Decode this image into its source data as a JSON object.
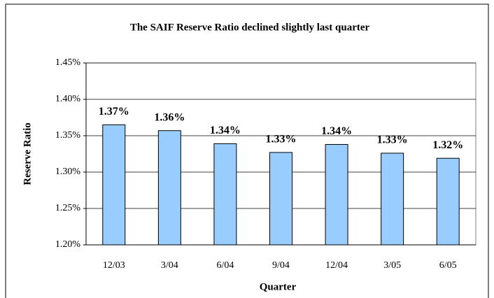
{
  "chart_data": {
    "type": "bar",
    "title": "The SAIF Reserve Ratio declined slightly last quarter",
    "x_label": "Quarter",
    "y_label": "Reserve Ratio",
    "categories": [
      "12/03",
      "3/04",
      "6/04",
      "9/04",
      "12/04",
      "3/05",
      "6/05"
    ],
    "values": [
      1.365,
      1.357,
      1.339,
      1.327,
      1.338,
      1.326,
      1.319
    ],
    "value_labels": [
      "1.37%",
      "1.36%",
      "1.34%",
      "1.33%",
      "1.34%",
      "1.33%",
      "1.32%"
    ],
    "color": "#99ccff",
    "ylim": [
      1.2,
      1.45
    ],
    "yticks": [
      {
        "value": 1.2,
        "label": "1.20%"
      },
      {
        "value": 1.25,
        "label": "1.25%"
      },
      {
        "value": 1.3,
        "label": "1.30%"
      },
      {
        "value": 1.35,
        "label": "1.35%"
      },
      {
        "value": 1.4,
        "label": "1.40%"
      },
      {
        "value": 1.45,
        "label": "1.45%"
      }
    ],
    "grid": true
  }
}
